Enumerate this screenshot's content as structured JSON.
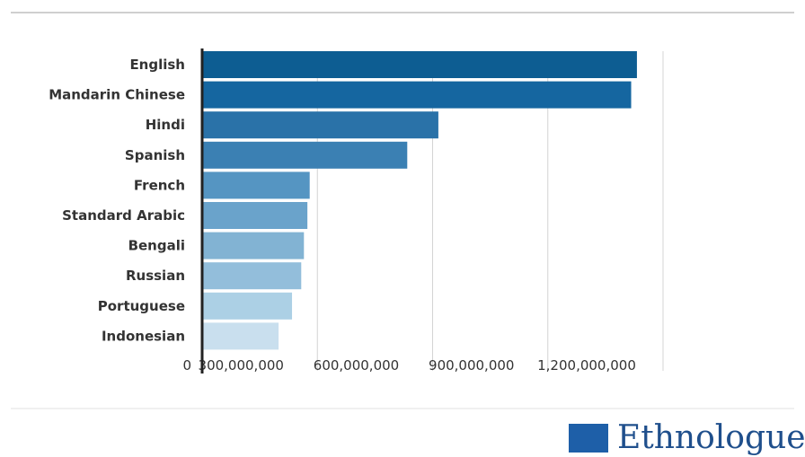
{
  "chart_data": {
    "type": "bar",
    "orientation": "horizontal",
    "categories": [
      "English",
      "Mandarin Chinese",
      "Hindi",
      "Spanish",
      "French",
      "Standard Arabic",
      "Bengali",
      "Russian",
      "Portuguese",
      "Indonesian"
    ],
    "values": [
      1132000000,
      1117000000,
      615000000,
      534000000,
      280000000,
      274000000,
      265000000,
      258000000,
      234000000,
      199000000
    ],
    "xticks": [
      0,
      300000000,
      600000000,
      900000000,
      1200000000
    ],
    "xtick_labels": [
      "0",
      "300,000,000",
      "600,000,000",
      "900,000,000",
      "1,200,000,000"
    ],
    "xlim": [
      0,
      1200000000
    ],
    "grid": "vertical",
    "colors": [
      "#0d5d92",
      "#1566a0",
      "#2a72a8",
      "#3b80b3",
      "#5595c2",
      "#6aa3cb",
      "#82b3d3",
      "#93bedb",
      "#acd0e5",
      "#c9dfee"
    ]
  },
  "brand": {
    "name": "Ethnologue",
    "color": "#1e5fa8"
  }
}
